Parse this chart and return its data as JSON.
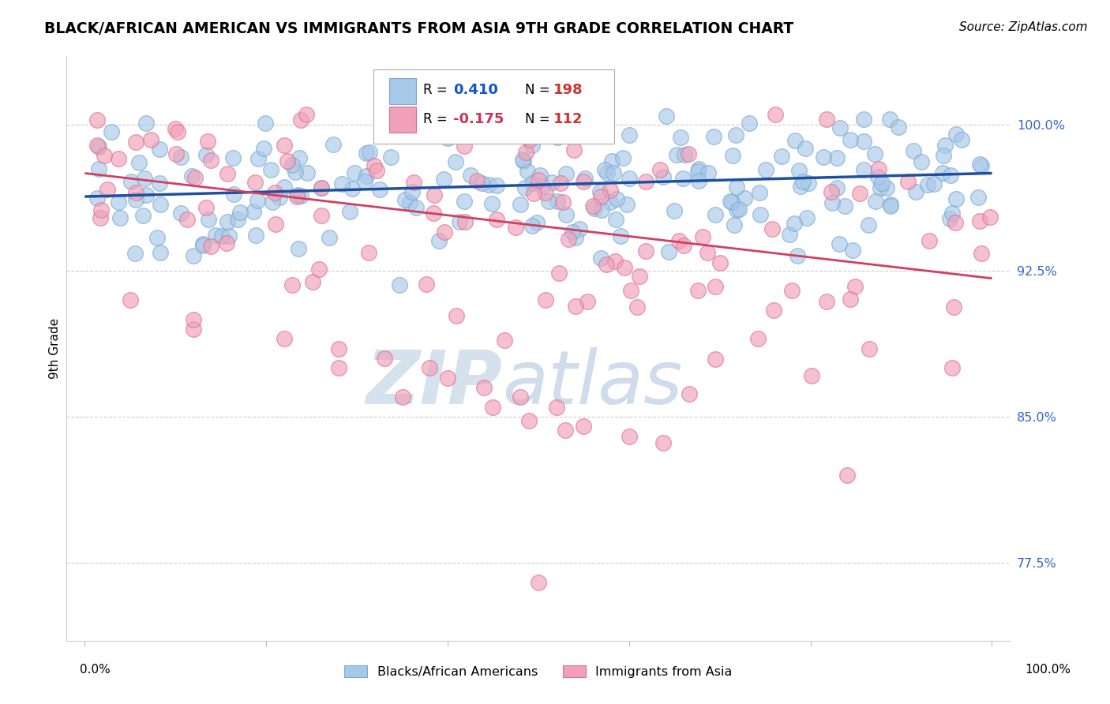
{
  "title": "BLACK/AFRICAN AMERICAN VS IMMIGRANTS FROM ASIA 9TH GRADE CORRELATION CHART",
  "source_text": "Source: ZipAtlas.com",
  "ylabel": "9th Grade",
  "legend_label_blue": "Blacks/African Americans",
  "legend_label_pink": "Immigrants from Asia",
  "blue_color": "#A8C8E8",
  "pink_color": "#F0A0B8",
  "blue_edge_color": "#7AAAD0",
  "pink_edge_color": "#E07090",
  "blue_line_color": "#1E4FA0",
  "pink_line_color": "#D04060",
  "r_val_blue_color": "#1155CC",
  "r_val_pink_color": "#CC3355",
  "n_val_color": "#CC3333",
  "ytick_color": "#3366CC",
  "ytick_labels": [
    "77.5%",
    "85.0%",
    "92.5%",
    "100.0%"
  ],
  "ytick_values": [
    0.775,
    0.85,
    0.925,
    1.0
  ],
  "ymin": 0.735,
  "ymax": 1.035,
  "xmin": -0.02,
  "xmax": 1.02,
  "blue_intercept": 0.963,
  "blue_slope": 0.012,
  "pink_intercept": 0.975,
  "pink_slope": -0.054,
  "watermark_zip_color": "#C5D5E8",
  "watermark_atlas_color": "#A8C0DC"
}
